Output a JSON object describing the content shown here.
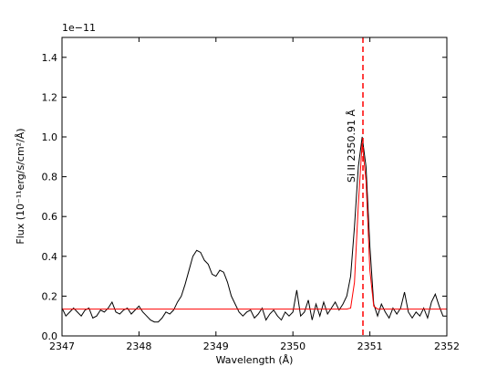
{
  "chart_data": {
    "type": "line",
    "offset_text": "1e−11",
    "xlabel": "Wavelength (Å)",
    "ylabel": "Flux (10⁻¹¹erg/s/cm²/Å)",
    "xlim": [
      2347,
      2352
    ],
    "xticks": [
      2347,
      2348,
      2349,
      2350,
      2351,
      2352
    ],
    "ylim": [
      0,
      1.5
    ],
    "yticks": [
      {
        "value": 0,
        "label": "0.0"
      },
      0.2,
      0.4,
      0.6,
      0.8,
      {
        "value": 1,
        "label": "1.0"
      },
      1.2,
      1.4
    ],
    "series": [
      {
        "color": "#000000",
        "x": [
          2347.0,
          2347.05,
          2347.1,
          2347.15,
          2347.2,
          2347.25,
          2347.3,
          2347.35,
          2347.4,
          2347.45,
          2347.5,
          2347.55,
          2347.6,
          2347.65,
          2347.7,
          2347.75,
          2347.8,
          2347.85,
          2347.9,
          2347.95,
          2348.0,
          2348.05,
          2348.1,
          2348.15,
          2348.2,
          2348.25,
          2348.3,
          2348.35,
          2348.4,
          2348.45,
          2348.5,
          2348.55,
          2348.6,
          2348.65,
          2348.7,
          2348.75,
          2348.8,
          2348.85,
          2348.9,
          2348.95,
          2349.0,
          2349.05,
          2349.1,
          2349.15,
          2349.2,
          2349.25,
          2349.3,
          2349.35,
          2349.4,
          2349.45,
          2349.5,
          2349.55,
          2349.6,
          2349.65,
          2349.7,
          2349.75,
          2349.8,
          2349.85,
          2349.9,
          2349.95,
          2350.0,
          2350.05,
          2350.1,
          2350.15,
          2350.2,
          2350.25,
          2350.3,
          2350.35,
          2350.4,
          2350.45,
          2350.5,
          2350.55,
          2350.6,
          2350.65,
          2350.7,
          2350.75,
          2350.8,
          2350.85,
          2350.9,
          2350.95,
          2351.0,
          2351.05,
          2351.1,
          2351.15,
          2351.2,
          2351.25,
          2351.3,
          2351.35,
          2351.4,
          2351.45,
          2351.5,
          2351.55,
          2351.6,
          2351.65,
          2351.7,
          2351.75,
          2351.8,
          2351.85,
          2351.9,
          2351.95,
          2352.0
        ],
        "values": [
          0.14,
          0.1,
          0.12,
          0.14,
          0.12,
          0.1,
          0.13,
          0.14,
          0.09,
          0.1,
          0.13,
          0.12,
          0.14,
          0.17,
          0.12,
          0.11,
          0.13,
          0.14,
          0.11,
          0.13,
          0.15,
          0.12,
          0.1,
          0.08,
          0.07,
          0.07,
          0.09,
          0.12,
          0.11,
          0.13,
          0.17,
          0.2,
          0.26,
          0.33,
          0.4,
          0.43,
          0.42,
          0.38,
          0.36,
          0.31,
          0.3,
          0.33,
          0.32,
          0.27,
          0.2,
          0.16,
          0.12,
          0.1,
          0.12,
          0.13,
          0.09,
          0.11,
          0.14,
          0.08,
          0.11,
          0.13,
          0.1,
          0.08,
          0.12,
          0.1,
          0.12,
          0.23,
          0.1,
          0.12,
          0.18,
          0.08,
          0.16,
          0.1,
          0.17,
          0.11,
          0.14,
          0.17,
          0.13,
          0.16,
          0.2,
          0.3,
          0.55,
          0.85,
          1.0,
          0.85,
          0.45,
          0.16,
          0.1,
          0.16,
          0.12,
          0.09,
          0.14,
          0.11,
          0.14,
          0.22,
          0.12,
          0.09,
          0.12,
          0.1,
          0.14,
          0.09,
          0.17,
          0.21,
          0.15,
          0.1,
          0.1
        ]
      },
      {
        "color": "#ff0000",
        "x": [
          2347.0,
          2350.7,
          2350.75,
          2350.8,
          2350.85,
          2350.9,
          2350.95,
          2351.0,
          2351.05,
          2351.1,
          2352.0
        ],
        "values": [
          0.135,
          0.135,
          0.14,
          0.27,
          0.66,
          0.97,
          0.78,
          0.33,
          0.15,
          0.135,
          0.135
        ]
      }
    ],
    "vline": {
      "x": 2350.91,
      "color": "#ff0000"
    },
    "annotation": "Si II   2350.91 Å"
  }
}
